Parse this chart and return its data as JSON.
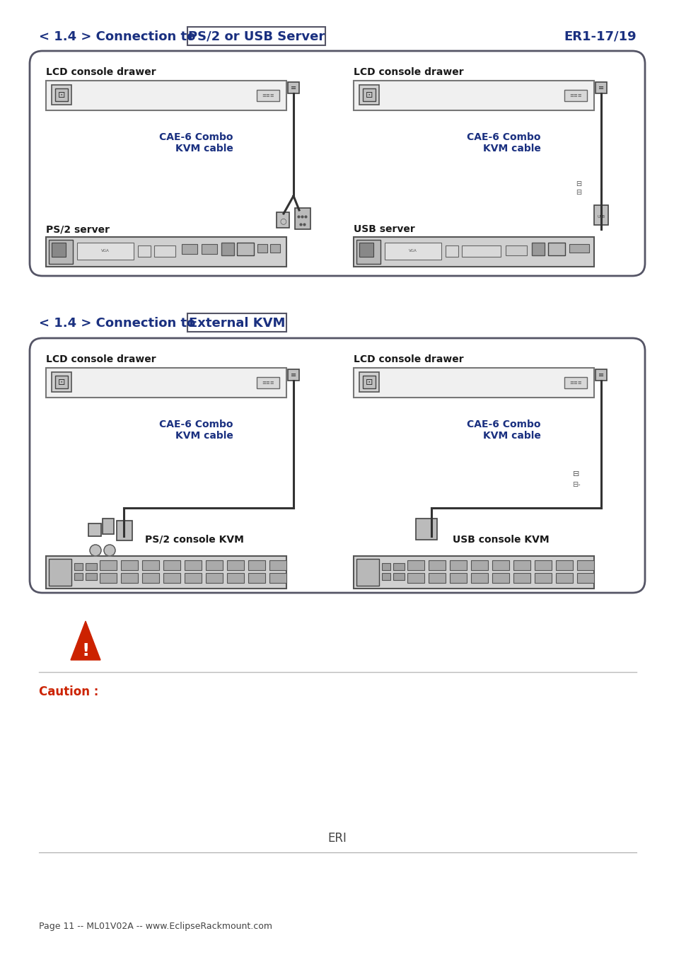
{
  "title1": "< 1.4 > Connection to",
  "title1_box": "PS/2 or USB Server",
  "title1_right": "ER1-17/19",
  "title2": "< 1.4 > Connection to",
  "title2_box": "External KVM",
  "section1_label_left": "LCD console drawer",
  "section1_label_right": "LCD console drawer",
  "section2_label_left": "LCD console drawer",
  "section2_label_right": "LCD console drawer",
  "cae_cable_label": "CAE-6 Combo\nKVM cable",
  "ps2_server_label": "PS/2 server",
  "usb_server_label": "USB server",
  "ps2_kvm_label": "PS/2 console KVM",
  "usb_kvm_label": "USB console KVM",
  "caution_label": "Caution :",
  "footer_center": "ERI",
  "footer_bottom": "Page 11 -- ML01V02A -- www.EclipseRackmount.com",
  "blue_dark": "#1a3080",
  "blue_bright": "#1a3080",
  "red_warn": "#cc2200",
  "bg_white": "#ffffff",
  "text_black": "#1a1a1a",
  "box_edge": "#555566",
  "gray_fill": "#e8e8e8",
  "gray_dark": "#b0b0b0",
  "gray_med": "#c8c8c8"
}
